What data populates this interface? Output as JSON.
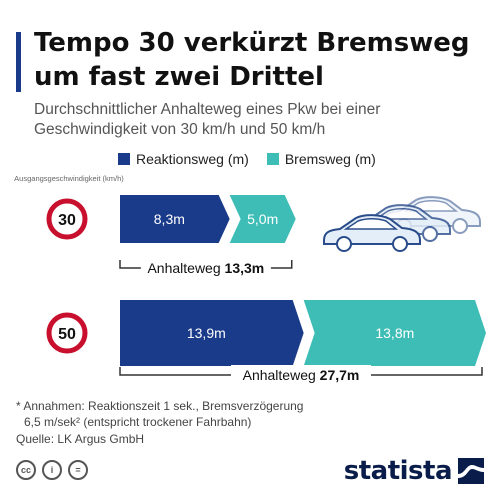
{
  "header": {
    "title": "Tempo 30 verkürzt Bremsweg um fast zwei Drittel",
    "subtitle": "Durchschnittlicher Anhalteweg eines Pkw bei einer Geschwindigkeit von 30 km/h und 50 km/h"
  },
  "axis_label": "Ausgangsgeschwindigkeit (km/h)",
  "legend": {
    "reaction": "Reaktionsweg (m)",
    "braking": "Bremsweg (m)"
  },
  "colors": {
    "reaction": "#1a3a8a",
    "braking": "#3dbdb5",
    "sign_ring": "#c8102e",
    "accent": "#1a3a8a",
    "car_fill": "#e3eef8",
    "car_stroke": "#2a4c8a"
  },
  "chart_data": {
    "type": "bar",
    "orientation": "horizontal",
    "stacked": true,
    "categories": [
      "30",
      "50"
    ],
    "series": [
      {
        "name": "Reaktionsweg (m)",
        "values": [
          8.3,
          13.9
        ],
        "labels": [
          "8,3m",
          "13,9m"
        ]
      },
      {
        "name": "Bremsweg (m)",
        "values": [
          5.0,
          13.8
        ],
        "labels": [
          "5,0m",
          "13,8m"
        ]
      }
    ],
    "totals": [
      {
        "prefix": "Anhalteweg",
        "value": "13,3m"
      },
      {
        "prefix": "Anhalteweg",
        "value": "27,7m"
      }
    ],
    "xlim": [
      0,
      27.7
    ],
    "grid": false
  },
  "footnote": {
    "line1": "* Annahmen: Reaktionszeit 1 sek., Bremsverzögerung",
    "line2": "6,5 m/sek² (entspricht trockener Fahrbahn)"
  },
  "source": "Quelle: LK Argus GmbH",
  "license_icons": [
    "cc-icon",
    "person-icon",
    "equals-icon"
  ],
  "license_glyphs": [
    "cc",
    "i",
    "="
  ],
  "brand": "statista"
}
